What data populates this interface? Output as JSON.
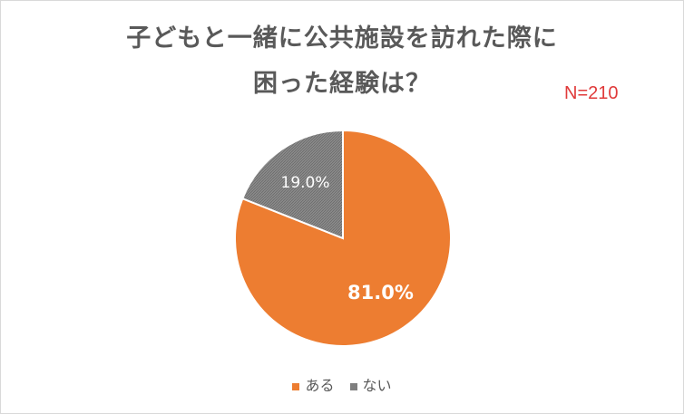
{
  "chart_data": {
    "type": "pie",
    "title": [
      "子どもと一緒に公共施設を訪れた際に",
      "困った経験は？"
    ],
    "annotation": "N=210",
    "slices": [
      {
        "label": "ある",
        "value": 81.0,
        "display": "81.0%",
        "color": "#ed7d31"
      },
      {
        "label": "ない",
        "value": 19.0,
        "display": "19.0%",
        "color": "#7f7f7f"
      }
    ],
    "legend_position": "bottom"
  }
}
